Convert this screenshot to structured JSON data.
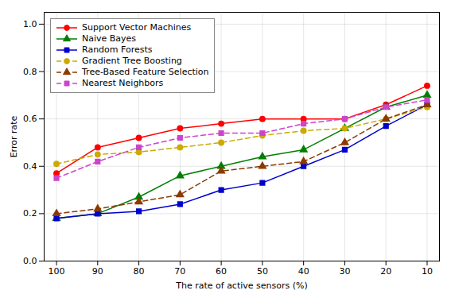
{
  "chart_data": {
    "type": "line",
    "xlabel": "The rate of active sensors (%)",
    "ylabel": "Error rate",
    "x": [
      100,
      90,
      80,
      70,
      60,
      50,
      40,
      30,
      20,
      10
    ],
    "series": [
      {
        "name": "Support Vector Machines",
        "color": "#ff0000",
        "line_style": "solid",
        "marker": "circle",
        "values": [
          0.37,
          0.48,
          0.52,
          0.56,
          0.58,
          0.6,
          0.6,
          0.6,
          0.66,
          0.74
        ]
      },
      {
        "name": "Naive Bayes",
        "color": "#007f00",
        "line_style": "solid",
        "marker": "triangle",
        "values": [
          0.18,
          0.2,
          0.27,
          0.36,
          0.4,
          0.44,
          0.47,
          0.56,
          0.65,
          0.7
        ]
      },
      {
        "name": "Random Forests",
        "color": "#0000cc",
        "line_style": "solid",
        "marker": "square",
        "values": [
          0.18,
          0.2,
          0.21,
          0.24,
          0.3,
          0.33,
          0.4,
          0.47,
          0.57,
          0.66
        ]
      },
      {
        "name": "Gradient Tree Boosting",
        "color": "#ccaa00",
        "line_style": "dashed",
        "marker": "circle",
        "values": [
          0.41,
          0.45,
          0.46,
          0.48,
          0.5,
          0.53,
          0.55,
          0.56,
          0.6,
          0.65
        ]
      },
      {
        "name": "Tree-Based Feature Selection",
        "color": "#8b3a00",
        "line_style": "dashed",
        "marker": "triangle",
        "values": [
          0.2,
          0.22,
          0.25,
          0.28,
          0.38,
          0.4,
          0.42,
          0.5,
          0.6,
          0.66
        ]
      },
      {
        "name": "Nearest Neighbors",
        "color": "#cc44cc",
        "line_style": "dashed",
        "marker": "square",
        "values": [
          0.35,
          0.42,
          0.48,
          0.52,
          0.54,
          0.54,
          0.58,
          0.6,
          0.65,
          0.68
        ]
      }
    ],
    "xlim": [
      103,
      7
    ],
    "xticks": [
      100,
      90,
      80,
      70,
      60,
      50,
      40,
      30,
      20,
      10
    ],
    "ylim": [
      0.0,
      1.05
    ],
    "yticks": [
      {
        "value": 0.0,
        "label": "0.0"
      },
      0.2,
      0.4,
      0.6,
      0.8,
      {
        "value": 1.0,
        "label": "1.0"
      }
    ],
    "grid": true,
    "legend": "upper left"
  }
}
